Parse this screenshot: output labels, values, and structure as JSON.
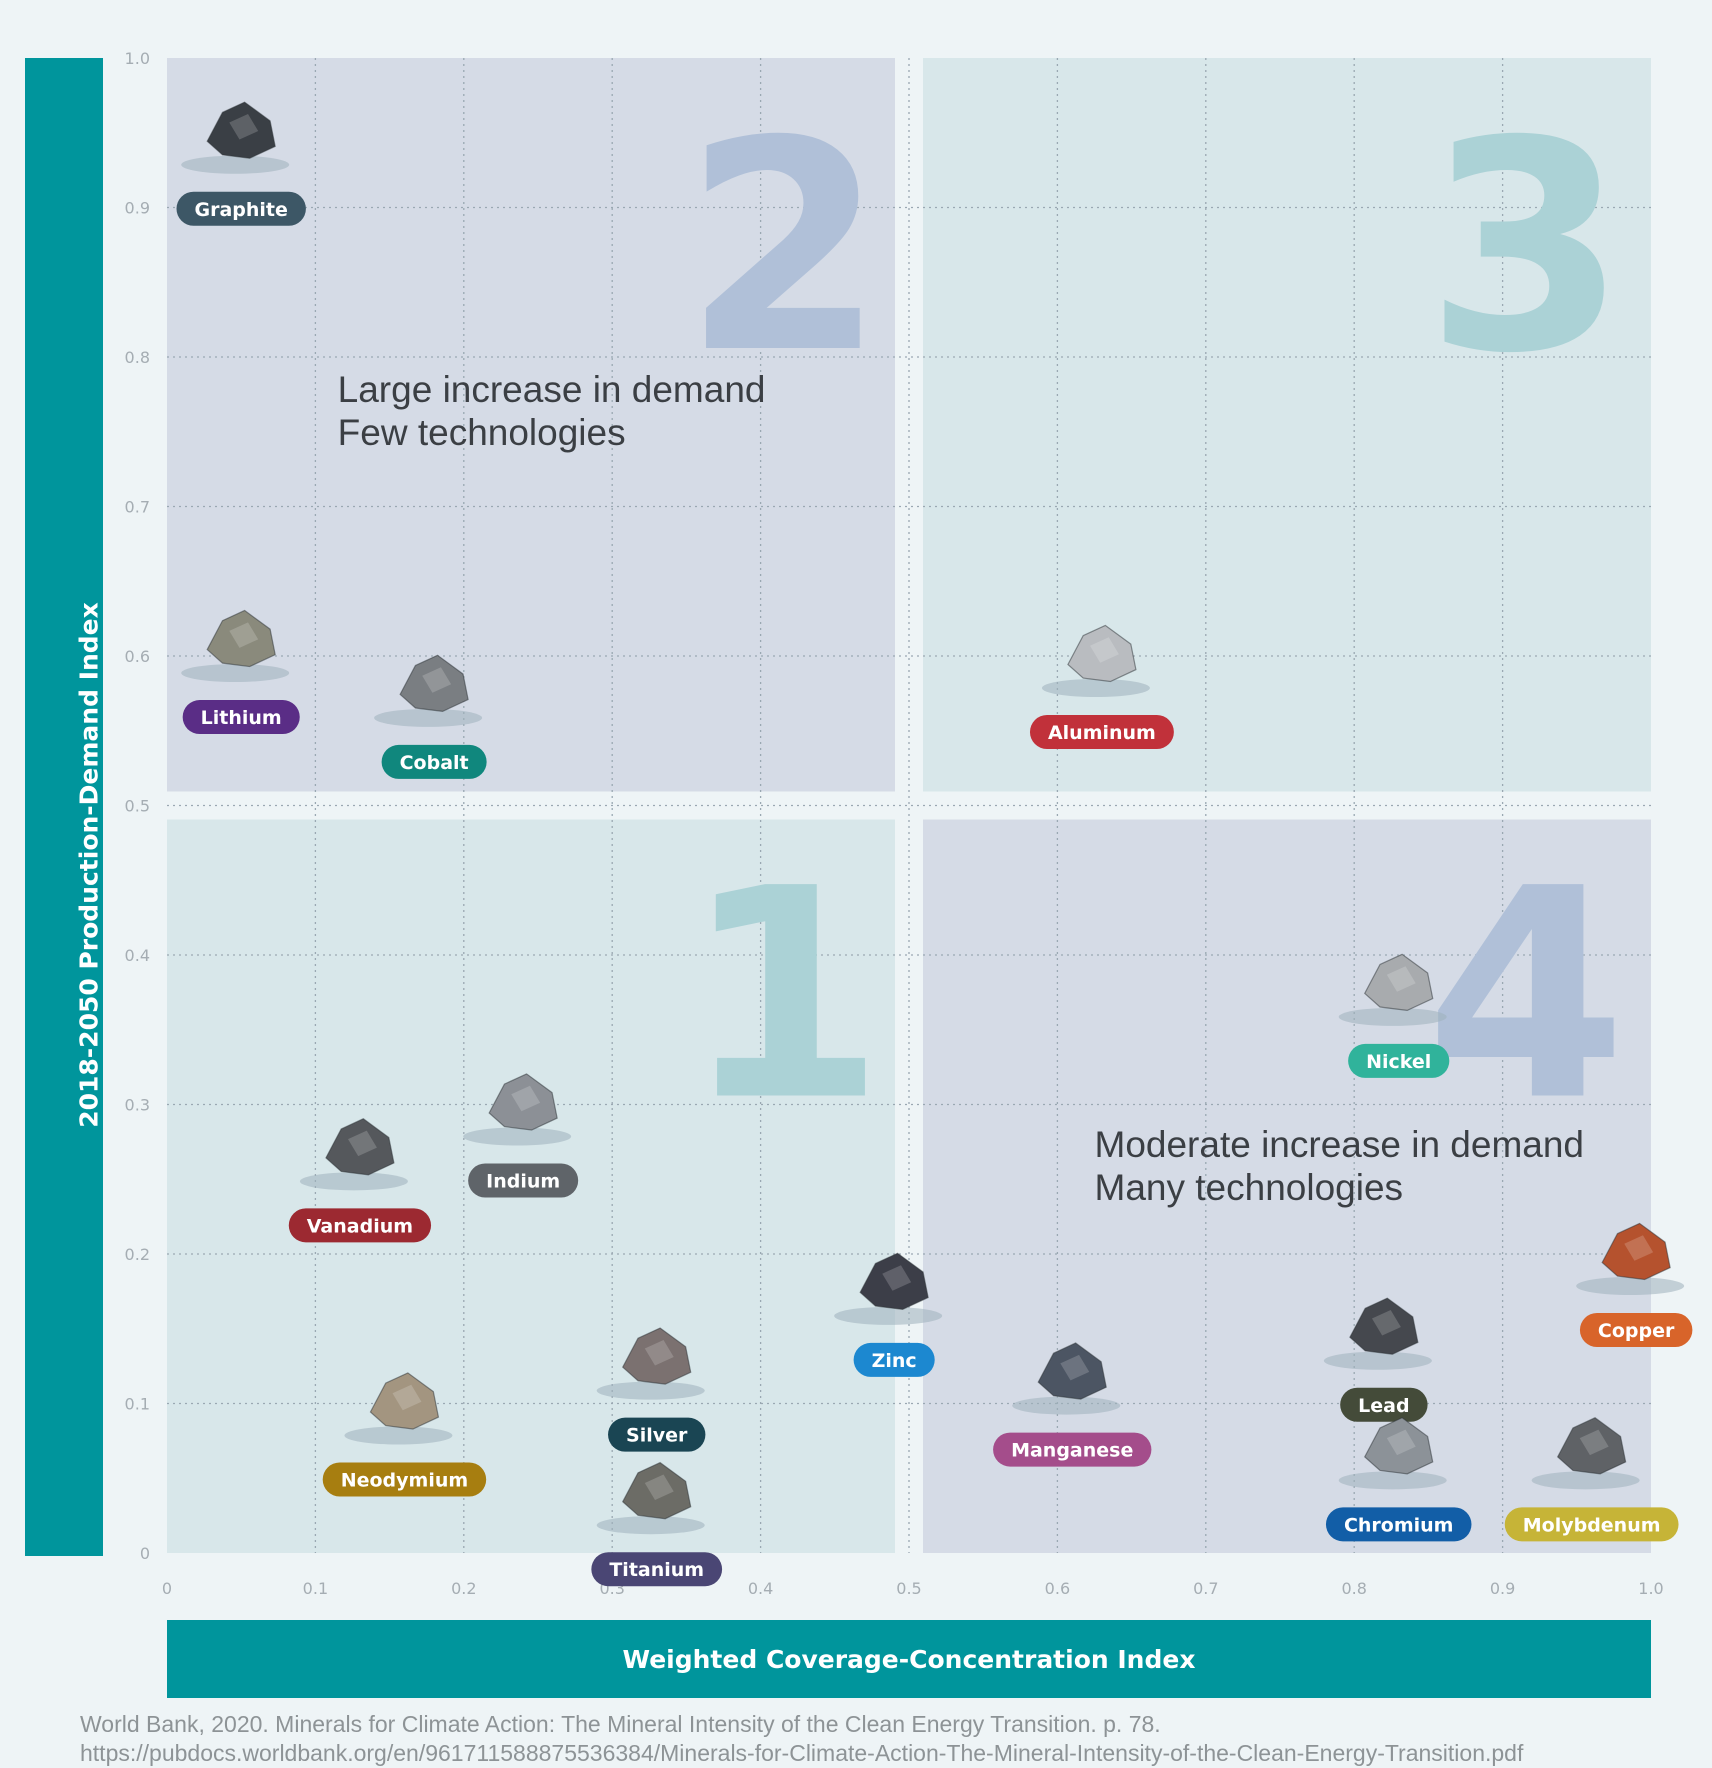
{
  "chart_data": {
    "type": "scatter",
    "xlabel": "Weighted Coverage-Concentration Index",
    "ylabel": "2018-2050 Production-Demand Index",
    "xlim": [
      0,
      1.0
    ],
    "ylim": [
      0,
      1.0
    ],
    "x_ticks": [
      "0",
      "0.1",
      "0.2",
      "0.3",
      "0.4",
      "0.5",
      "0.6",
      "0.7",
      "0.8",
      "0.9",
      "1.0"
    ],
    "y_ticks": [
      "0",
      "0.1",
      "0.2",
      "0.3",
      "0.4",
      "0.5",
      "0.6",
      "0.7",
      "0.8",
      "0.9",
      "1.0"
    ],
    "grid": true,
    "quadrants": [
      {
        "number": "1",
        "x_range": [
          0,
          0.5
        ],
        "y_range": [
          0,
          0.5
        ],
        "color": "#d8e7ea",
        "number_color": "#abd2d6"
      },
      {
        "number": "2",
        "x_range": [
          0,
          0.5
        ],
        "y_range": [
          0.5,
          1.0
        ],
        "color": "#d5dbe6",
        "number_color": "#b0c0d8"
      },
      {
        "number": "3",
        "x_range": [
          0.5,
          1.0
        ],
        "y_range": [
          0.5,
          1.0
        ],
        "color": "#d8e7ea",
        "number_color": "#abd2d6"
      },
      {
        "number": "4",
        "x_range": [
          0.5,
          1.0
        ],
        "y_range": [
          0,
          0.5
        ],
        "color": "#d5dbe6",
        "number_color": "#b0c0d8"
      }
    ],
    "annotations": [
      {
        "lines": [
          "Large increase in demand",
          "Few technologies"
        ],
        "x": 0.115,
        "y": 0.77
      },
      {
        "lines": [
          "Moderate increase in demand",
          "Many technologies"
        ],
        "x": 0.625,
        "y": 0.265
      }
    ],
    "points": [
      {
        "name": "Graphite",
        "x": 0.05,
        "y": 0.95,
        "color": "#3d5766",
        "rock": "#3a3f45"
      },
      {
        "name": "Lithium",
        "x": 0.05,
        "y": 0.61,
        "color": "#5a2d86",
        "rock": "#8a8a7c"
      },
      {
        "name": "Cobalt",
        "x": 0.18,
        "y": 0.58,
        "color": "#10877d",
        "rock": "#7a7e82"
      },
      {
        "name": "Aluminum",
        "x": 0.63,
        "y": 0.6,
        "color": "#c1313a",
        "rock": "#b9bcc0"
      },
      {
        "name": "Nickel",
        "x": 0.83,
        "y": 0.38,
        "color": "#30b39b",
        "rock": "#a8abae"
      },
      {
        "name": "Indium",
        "x": 0.24,
        "y": 0.3,
        "color": "#5f6469",
        "rock": "#8c9096"
      },
      {
        "name": "Vanadium",
        "x": 0.13,
        "y": 0.27,
        "color": "#9c2931",
        "rock": "#55585c"
      },
      {
        "name": "Zinc",
        "x": 0.49,
        "y": 0.18,
        "color": "#1c88d0",
        "rock": "#3c3e48"
      },
      {
        "name": "Copper",
        "x": 0.99,
        "y": 0.2,
        "color": "#d8642a",
        "rock": "#b5522e"
      },
      {
        "name": "Lead",
        "x": 0.82,
        "y": 0.15,
        "color": "#444b39",
        "rock": "#45484e"
      },
      {
        "name": "Manganese",
        "x": 0.61,
        "y": 0.12,
        "color": "#a44d8b",
        "rock": "#4c5563"
      },
      {
        "name": "Silver",
        "x": 0.33,
        "y": 0.13,
        "color": "#1a4553",
        "rock": "#7b7170"
      },
      {
        "name": "Neodymium",
        "x": 0.16,
        "y": 0.1,
        "color": "#a77e10",
        "rock": "#a39580"
      },
      {
        "name": "Chromium",
        "x": 0.83,
        "y": 0.07,
        "color": "#125ea7",
        "rock": "#8c9298"
      },
      {
        "name": "Molybdenum",
        "x": 0.96,
        "y": 0.07,
        "color": "#c6b437",
        "rock": "#5f6266"
      },
      {
        "name": "Titanium",
        "x": 0.33,
        "y": 0.04,
        "color": "#4a4674",
        "rock": "#6c6c66"
      }
    ]
  },
  "source": {
    "line1": "World Bank, 2020. Minerals for Climate Action: The Mineral Intensity of the Clean Energy Transition. p. 78.",
    "line2": "https://pubdocs.worldbank.org/en/961711588875536384/Minerals-for-Climate-Action-The-Mineral-Intensity-of-the-Clean-Energy-Transition.pdf"
  },
  "colors": {
    "axis_bar": "#00959c",
    "background": "#eef4f6",
    "grid": "#9aa8b2"
  }
}
